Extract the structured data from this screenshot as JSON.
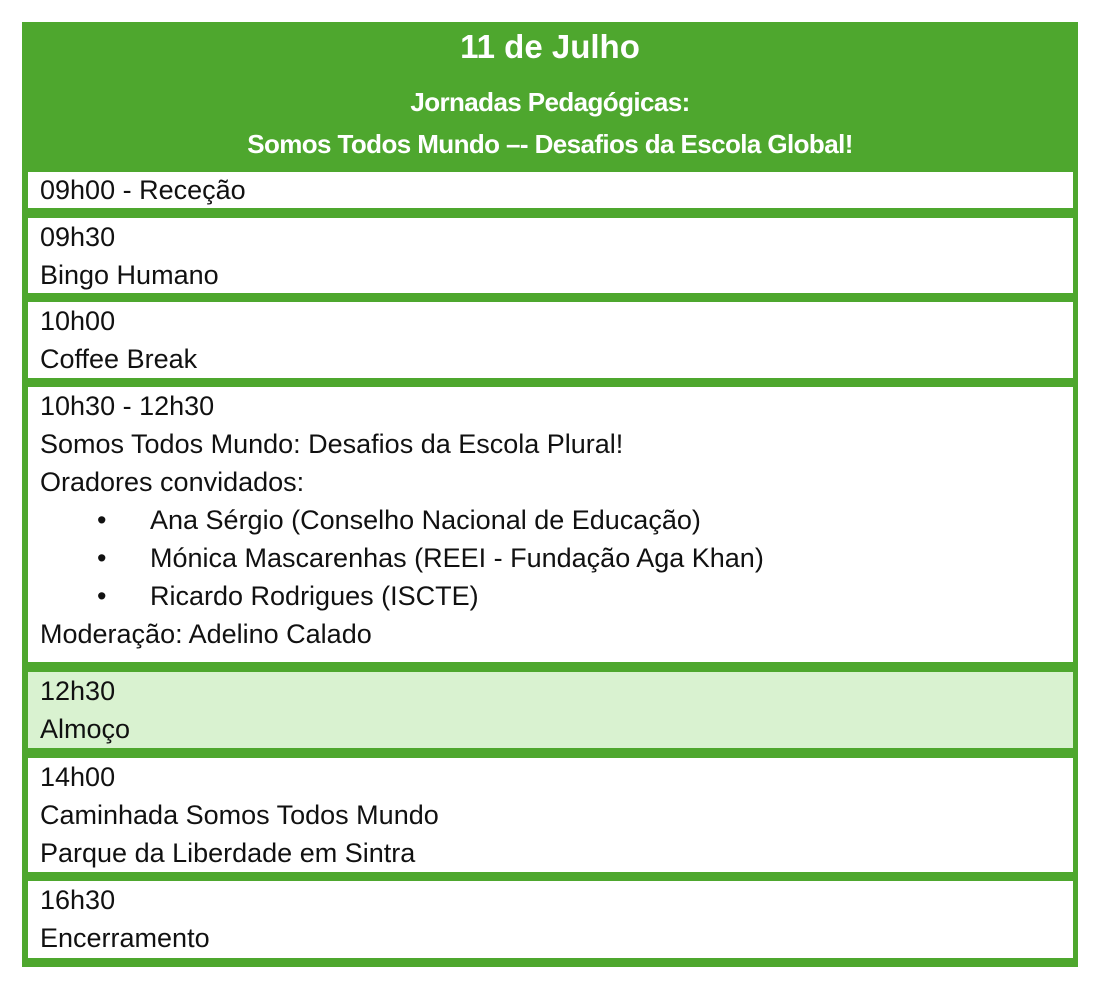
{
  "header": {
    "title": "11 de Julho",
    "subtitle_line1": "Jornadas Pedagógicas:",
    "subtitle_line2": "Somos Todos Mundo –- Desafios da Escola Global!"
  },
  "colors": {
    "frame": "#4ea72e",
    "highlight_row": "#d9f2d0",
    "header_text": "#ffffff"
  },
  "schedule": [
    {
      "lines": [
        "09h00 - Receção"
      ]
    },
    {
      "lines": [
        "09h30",
        "Bingo Humano"
      ]
    },
    {
      "lines": [
        "10h00",
        "Coffee Break"
      ]
    },
    {
      "lines": [
        "10h30 - 12h30",
        "Somos Todos Mundo: Desafios da Escola Plural!",
        "Oradores convidados:"
      ],
      "speakers": [
        "Ana Sérgio (Conselho Nacional de Educação)",
        "Mónica Mascarenhas (REEI - Fundação Aga Khan)",
        "Ricardo Rodrigues (ISCTE)"
      ],
      "bullet": "•",
      "moderation": "Moderação: Adelino Calado"
    },
    {
      "lines": [
        "12h30",
        "Almoço"
      ],
      "highlighted": true
    },
    {
      "lines": [
        "14h00",
        "Caminhada Somos Todos Mundo",
        "Parque da Liberdade em Sintra"
      ]
    },
    {
      "lines": [
        "16h30",
        "Encerramento"
      ]
    }
  ]
}
